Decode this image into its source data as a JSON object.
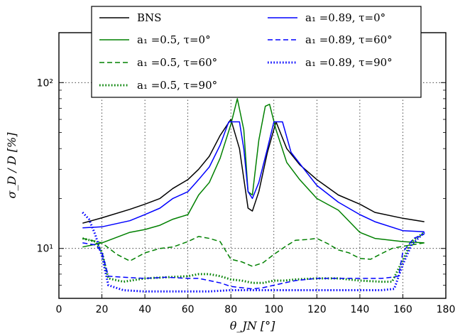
{
  "chart_data": {
    "type": "line",
    "xlabel": "θ_JN [°]",
    "ylabel": "σ_D / D [%]",
    "xlim": [
      0,
      180
    ],
    "ylim": [
      5,
      200
    ],
    "yscale": "log",
    "grid": true,
    "legend_position": "top",
    "x_ticks": [
      "0",
      "20",
      "40",
      "60",
      "80",
      "100",
      "120",
      "140",
      "160",
      "180"
    ],
    "y_ticks": [
      "10¹",
      "10²"
    ],
    "series": [
      {
        "name": "BNS",
        "color": "#000000",
        "dash": "solid",
        "points": [
          [
            11,
            14.2
          ],
          [
            20,
            15.3
          ],
          [
            33,
            17.2
          ],
          [
            40,
            18.5
          ],
          [
            47,
            20
          ],
          [
            53,
            23
          ],
          [
            60,
            26
          ],
          [
            65,
            30
          ],
          [
            70,
            36
          ],
          [
            75,
            48
          ],
          [
            80,
            60
          ],
          [
            84,
            40
          ],
          [
            88,
            17.5
          ],
          [
            90,
            16.8
          ],
          [
            93,
            22
          ],
          [
            97,
            38
          ],
          [
            101,
            58
          ],
          [
            106,
            40
          ],
          [
            112,
            32
          ],
          [
            120,
            26
          ],
          [
            130,
            21
          ],
          [
            140,
            18.5
          ],
          [
            147,
            16.5
          ],
          [
            160,
            15.2
          ],
          [
            170,
            14.5
          ]
        ]
      },
      {
        "name": "a₁ =0.5, τ=0°",
        "color": "#008000",
        "dash": "solid",
        "points": [
          [
            11,
            10.2
          ],
          [
            20,
            10.8
          ],
          [
            33,
            12.5
          ],
          [
            40,
            13
          ],
          [
            47,
            13.8
          ],
          [
            53,
            15
          ],
          [
            60,
            16
          ],
          [
            65,
            21
          ],
          [
            70,
            25
          ],
          [
            75,
            35
          ],
          [
            80,
            56
          ],
          [
            83,
            80
          ],
          [
            86,
            52
          ],
          [
            88,
            22
          ],
          [
            90,
            21
          ],
          [
            93,
            45
          ],
          [
            96,
            72
          ],
          [
            98,
            74
          ],
          [
            101,
            52
          ],
          [
            106,
            33
          ],
          [
            112,
            26
          ],
          [
            120,
            20
          ],
          [
            130,
            17
          ],
          [
            140,
            12.5
          ],
          [
            147,
            11.5
          ],
          [
            160,
            11
          ],
          [
            170,
            10.8
          ]
        ]
      },
      {
        "name": "a₁ =0.5, τ=60°",
        "color": "#008000",
        "dash": "dashed",
        "points": [
          [
            11,
            11.5
          ],
          [
            20,
            10.8
          ],
          [
            27,
            9.2
          ],
          [
            33,
            8.4
          ],
          [
            40,
            9.4
          ],
          [
            47,
            10
          ],
          [
            53,
            10.2
          ],
          [
            60,
            11
          ],
          [
            65,
            11.8
          ],
          [
            70,
            11.5
          ],
          [
            75,
            11
          ],
          [
            80,
            8.6
          ],
          [
            85,
            8.3
          ],
          [
            90,
            7.8
          ],
          [
            95,
            8.2
          ],
          [
            100,
            9.2
          ],
          [
            105,
            10.2
          ],
          [
            110,
            11.2
          ],
          [
            115,
            11.3
          ],
          [
            120,
            11.5
          ],
          [
            125,
            10.7
          ],
          [
            130,
            9.8
          ],
          [
            135,
            9.4
          ],
          [
            140,
            8.7
          ],
          [
            145,
            8.6
          ],
          [
            150,
            9.3
          ],
          [
            155,
            10
          ],
          [
            160,
            10.3
          ],
          [
            170,
            10.8
          ]
        ]
      },
      {
        "name": "a₁ =0.5, τ=90°",
        "color": "#008000",
        "dash": "dotted",
        "points": [
          [
            11,
            11.5
          ],
          [
            17,
            11
          ],
          [
            20,
            9.5
          ],
          [
            23,
            6.6
          ],
          [
            30,
            6.3
          ],
          [
            40,
            6.6
          ],
          [
            50,
            6.7
          ],
          [
            60,
            6.8
          ],
          [
            65,
            7
          ],
          [
            70,
            7
          ],
          [
            75,
            6.8
          ],
          [
            80,
            6.5
          ],
          [
            85,
            6.4
          ],
          [
            90,
            6.2
          ],
          [
            95,
            6.2
          ],
          [
            100,
            6.4
          ],
          [
            105,
            6.4
          ],
          [
            110,
            6.5
          ],
          [
            120,
            6.6
          ],
          [
            130,
            6.6
          ],
          [
            140,
            6.4
          ],
          [
            150,
            6.3
          ],
          [
            155,
            6.3
          ],
          [
            160,
            8.5
          ],
          [
            164,
            11
          ],
          [
            170,
            12.5
          ]
        ]
      },
      {
        "name": "a₁ =0.89, τ=0°",
        "color": "#0000ff",
        "dash": "solid",
        "points": [
          [
            11,
            13.3
          ],
          [
            20,
            13.5
          ],
          [
            33,
            14.7
          ],
          [
            40,
            16
          ],
          [
            47,
            17.5
          ],
          [
            53,
            20
          ],
          [
            60,
            22
          ],
          [
            65,
            26
          ],
          [
            70,
            31
          ],
          [
            75,
            42
          ],
          [
            79,
            58
          ],
          [
            84,
            58
          ],
          [
            86,
            40
          ],
          [
            88,
            22
          ],
          [
            90,
            20
          ],
          [
            93,
            25
          ],
          [
            97,
            40
          ],
          [
            100,
            58
          ],
          [
            104,
            58
          ],
          [
            108,
            38
          ],
          [
            115,
            29
          ],
          [
            120,
            24
          ],
          [
            130,
            19
          ],
          [
            140,
            16
          ],
          [
            147,
            14.5
          ],
          [
            160,
            12.8
          ],
          [
            170,
            12.6
          ]
        ]
      },
      {
        "name": "a₁ =0.89, τ=60°",
        "color": "#0000ff",
        "dash": "dashed",
        "points": [
          [
            11,
            10.8
          ],
          [
            17,
            10.5
          ],
          [
            20,
            9.5
          ],
          [
            23,
            6.8
          ],
          [
            30,
            6.7
          ],
          [
            40,
            6.6
          ],
          [
            50,
            6.7
          ],
          [
            60,
            6.6
          ],
          [
            65,
            6.6
          ],
          [
            70,
            6.4
          ],
          [
            75,
            6.2
          ],
          [
            80,
            5.9
          ],
          [
            85,
            5.8
          ],
          [
            90,
            5.7
          ],
          [
            95,
            5.8
          ],
          [
            100,
            6
          ],
          [
            105,
            6.2
          ],
          [
            110,
            6.4
          ],
          [
            120,
            6.6
          ],
          [
            130,
            6.6
          ],
          [
            140,
            6.6
          ],
          [
            150,
            6.6
          ],
          [
            155,
            6.7
          ],
          [
            158,
            6.8
          ],
          [
            160,
            9.5
          ],
          [
            165,
            11.5
          ],
          [
            170,
            12.2
          ]
        ]
      },
      {
        "name": "a₁ =0.89, τ=90°",
        "color": "#0000ff",
        "dash": "dotted",
        "points": [
          [
            11,
            16.5
          ],
          [
            14,
            15
          ],
          [
            17,
            12
          ],
          [
            20,
            9
          ],
          [
            23,
            6
          ],
          [
            30,
            5.6
          ],
          [
            40,
            5.5
          ],
          [
            50,
            5.5
          ],
          [
            60,
            5.5
          ],
          [
            70,
            5.5
          ],
          [
            80,
            5.6
          ],
          [
            90,
            5.6
          ],
          [
            100,
            5.6
          ],
          [
            110,
            5.6
          ],
          [
            120,
            5.6
          ],
          [
            130,
            5.6
          ],
          [
            140,
            5.6
          ],
          [
            150,
            5.6
          ],
          [
            156,
            5.7
          ],
          [
            160,
            8
          ],
          [
            164,
            10.5
          ],
          [
            170,
            12.5
          ]
        ]
      }
    ]
  }
}
